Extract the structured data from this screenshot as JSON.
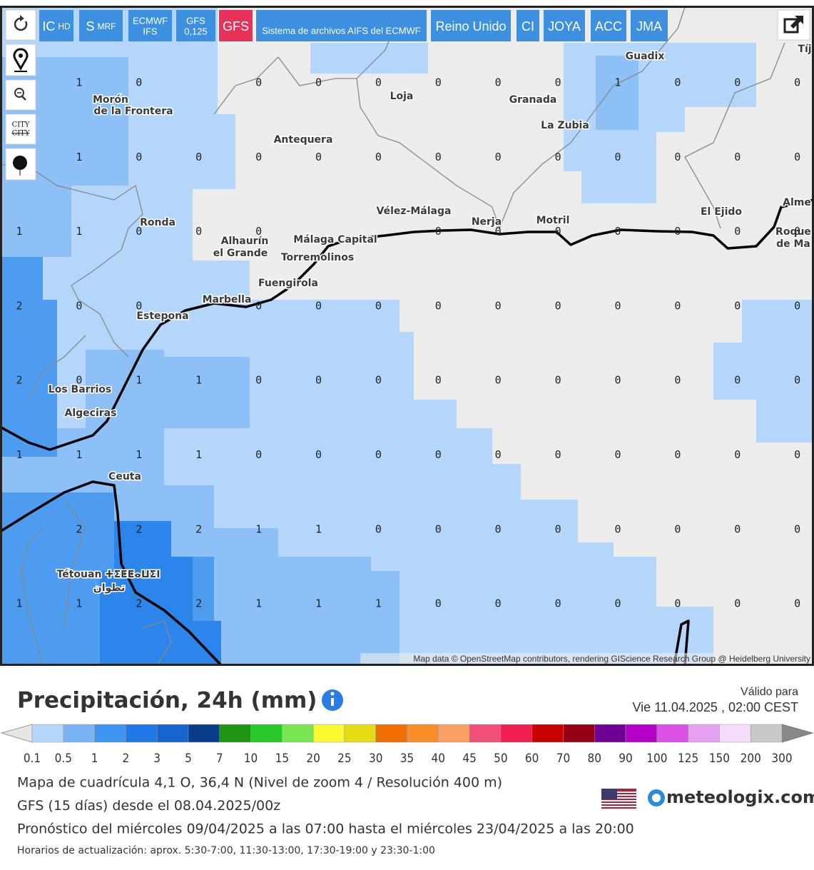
{
  "toolbar": {
    "buttons": [
      {
        "label": "IC",
        "sub": "HD"
      },
      {
        "label": "S",
        "sub": "MRF"
      },
      {
        "label": "ECMWF",
        "sub": "IFS"
      },
      {
        "label": "GFS",
        "sub": "0,125"
      },
      {
        "label": "GFS"
      },
      {
        "label": "Sistema de archivos AIFS del ECMWF"
      },
      {
        "label": "Reino Unido"
      },
      {
        "label": "CI"
      },
      {
        "label": "JOYA"
      },
      {
        "label": "ACC"
      },
      {
        "label": "JMA"
      }
    ],
    "city_toggle": [
      "CITY",
      "CITY"
    ]
  },
  "map": {
    "places": [
      "Morón",
      "de la Frontera",
      "Antequera",
      "Loja",
      "Granada",
      "La Zubia",
      "Guadix",
      "Vélez-Málaga",
      "Nerja",
      "Motril",
      "El Ejido",
      "Alme",
      "Roque",
      "de Ma",
      "Ronda",
      "Alhaurín",
      "el Grande",
      "Málaga Capital",
      "Torremolinos",
      "Fuengirola",
      "Marbella",
      "Estepona",
      "Los Barrios",
      "Algeciras",
      "Ceuta",
      "Tétouan ⵜⵉⵟⵟⴰⵡⵉⵏ",
      "تطوان",
      "Tíj"
    ],
    "grid": [
      [
        null,
        1,
        0,
        null,
        0,
        0,
        0,
        0,
        0,
        0,
        1,
        0,
        0,
        0
      ],
      [
        null,
        1,
        0,
        0,
        0,
        0,
        0,
        0,
        0,
        0,
        0,
        0,
        0,
        0
      ],
      [
        1,
        1,
        0,
        0,
        0,
        null,
        null,
        0,
        0,
        0,
        0,
        0,
        0,
        0
      ],
      [
        2,
        0,
        0,
        null,
        0,
        0,
        0,
        0,
        0,
        0,
        0,
        0,
        0,
        0
      ],
      [
        2,
        0,
        1,
        1,
        0,
        0,
        0,
        0,
        0,
        0,
        0,
        0,
        0,
        0
      ],
      [
        1,
        1,
        1,
        1,
        0,
        0,
        0,
        0,
        0,
        0,
        0,
        0,
        0,
        0
      ],
      [
        null,
        2,
        2,
        2,
        1,
        1,
        0,
        0,
        0,
        0,
        0,
        0,
        0,
        0
      ],
      [
        1,
        1,
        2,
        2,
        1,
        1,
        1,
        0,
        0,
        0,
        0,
        0,
        0,
        0
      ]
    ],
    "attribution": "Map data © OpenStreetMap contributors, rendering GIScience Research Group @ Heidelberg University"
  },
  "legend": {
    "title": "Precipitación, 24h (mm)",
    "valid_label": "Válido para",
    "valid_time": "Vie 11.04.2025 , 02:00 CEST",
    "colors": [
      "#b4d6fa",
      "#78b4f5",
      "#3c96f0",
      "#1e78e6",
      "#1464d2",
      "#0a3c8c",
      "#1e9614",
      "#28c828",
      "#78e650",
      "#fafa32",
      "#e6dc14",
      "#f06e00",
      "#fa8c28",
      "#faa064",
      "#f05078",
      "#f01e50",
      "#c80000",
      "#960014",
      "#6e0096",
      "#b400c8",
      "#dc50e6",
      "#e6a0f0",
      "#f5dcfa",
      "#c8c8c8"
    ],
    "labels": [
      0.1,
      0.5,
      1,
      2,
      3,
      5,
      7,
      10,
      15,
      20,
      25,
      30,
      35,
      40,
      45,
      50,
      60,
      70,
      80,
      90,
      100,
      125,
      150,
      200,
      300
    ]
  },
  "info": {
    "lines": [
      "Mapa de cuadrícula 4,1 O, 36,4 N (Nivel de zoom 4 / Resolución 400 m)",
      "GFS (15 días) desde el 08.04.2025/00z",
      "Pronóstico del miércoles 09/04/2025 a las 07:00 hasta el miércoles 23/04/2025 a las 20:00"
    ],
    "update_note": "Horarios de actualización: aprox. 5:30-7:00, 11:30-13:00, 17:30-19:00 y 23:30-1:00",
    "brand": "meteologix.com"
  }
}
